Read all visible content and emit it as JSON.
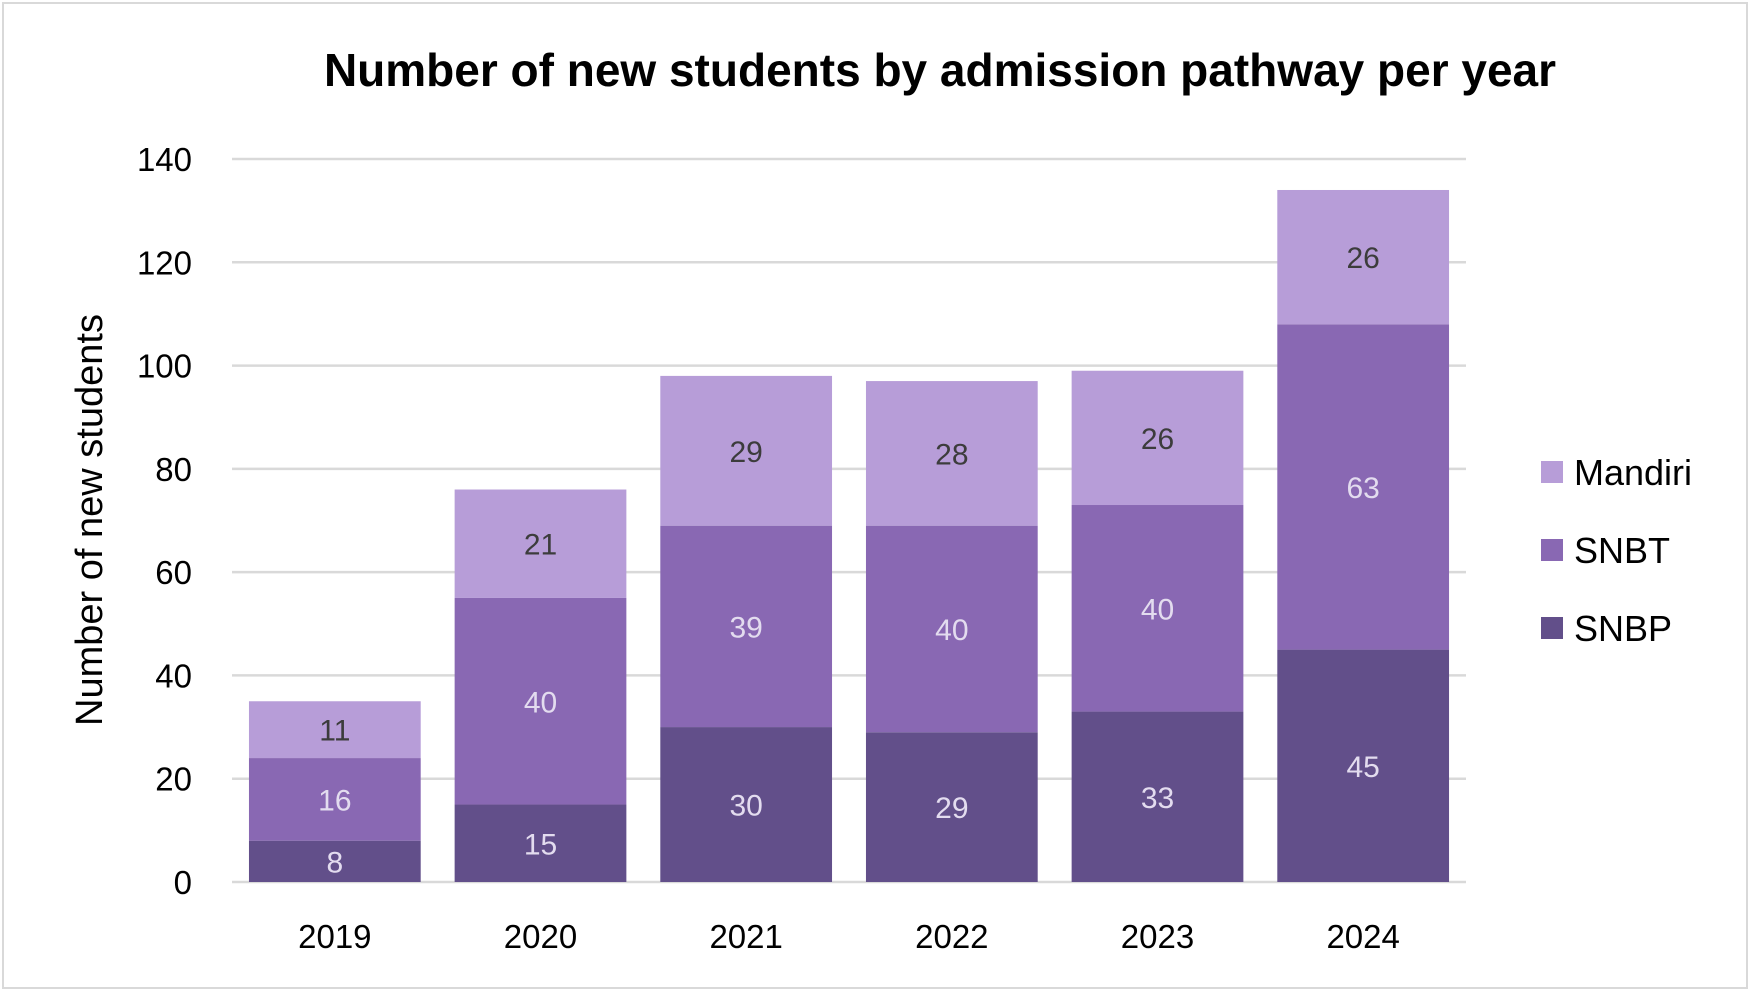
{
  "chart_data": {
    "type": "bar",
    "stacked": true,
    "title": "Number of new students by admission pathway per year",
    "xlabel": "",
    "ylabel": "Number of new students",
    "ylim": [
      0,
      140
    ],
    "yticks": [
      0,
      20,
      40,
      60,
      80,
      100,
      120,
      140
    ],
    "grid": true,
    "legend_position": "right",
    "categories": [
      "2019",
      "2020",
      "2021",
      "2022",
      "2023",
      "2024"
    ],
    "series": [
      {
        "name": "SNBP",
        "color": "#624f8a",
        "label_color": "#e3dcef",
        "values": [
          8,
          15,
          30,
          29,
          33,
          45
        ]
      },
      {
        "name": "SNBT",
        "color": "#8968b3",
        "label_color": "#e3dcef",
        "values": [
          16,
          40,
          39,
          40,
          40,
          63
        ]
      },
      {
        "name": "Mandiri",
        "color": "#b79dd8",
        "label_color": "#3c3c3c",
        "values": [
          11,
          21,
          29,
          28,
          26,
          26
        ]
      }
    ],
    "legend_order": [
      "Mandiri",
      "SNBT",
      "SNBP"
    ]
  }
}
